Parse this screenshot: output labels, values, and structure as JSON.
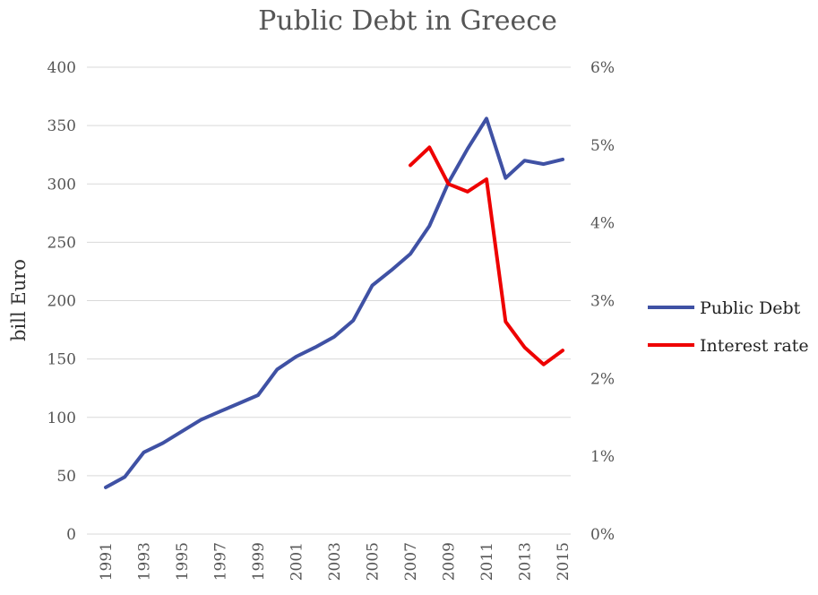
{
  "chart_data": {
    "type": "line",
    "title": "Public Debt in Greece",
    "ylabel": "bill Euro",
    "y2label": "",
    "ylim": [
      0,
      400
    ],
    "y_ticks": [
      "0",
      "50",
      "100",
      "150",
      "200",
      "250",
      "300",
      "350",
      "400"
    ],
    "y2lim": [
      0,
      0.06
    ],
    "y2_ticks": [
      "0%",
      "1%",
      "2%",
      "3%",
      "4%",
      "5%",
      "6%"
    ],
    "x_ticks": [
      "1991",
      "1993",
      "1995",
      "1997",
      "1999",
      "2001",
      "2003",
      "2005",
      "2007",
      "2009",
      "2011",
      "2013",
      "2015"
    ],
    "grid": true,
    "legend_position": "right",
    "series": [
      {
        "name": "Public Debt",
        "axis": "left",
        "color": "#3F51A4",
        "x": [
          1991,
          1992,
          1993,
          1994,
          1995,
          1996,
          1997,
          1998,
          1999,
          2000,
          2001,
          2002,
          2003,
          2004,
          2005,
          2006,
          2007,
          2008,
          2009,
          2010,
          2011,
          2012,
          2013,
          2014,
          2015
        ],
        "values": [
          40,
          49,
          70,
          78,
          88,
          98,
          105,
          112,
          119,
          141,
          152,
          160,
          169,
          183,
          213,
          226,
          240,
          264,
          301,
          330,
          356,
          305,
          320,
          317,
          321
        ]
      },
      {
        "name": "Interest rate",
        "axis": "right",
        "color": "#EE0000",
        "x": [
          2007,
          2008,
          2009,
          2010,
          2011,
          2012,
          2013,
          2014,
          2015
        ],
        "values": [
          0.0474,
          0.0497,
          0.045,
          0.044,
          0.0456,
          0.0273,
          0.024,
          0.0218,
          0.0236
        ]
      }
    ]
  }
}
